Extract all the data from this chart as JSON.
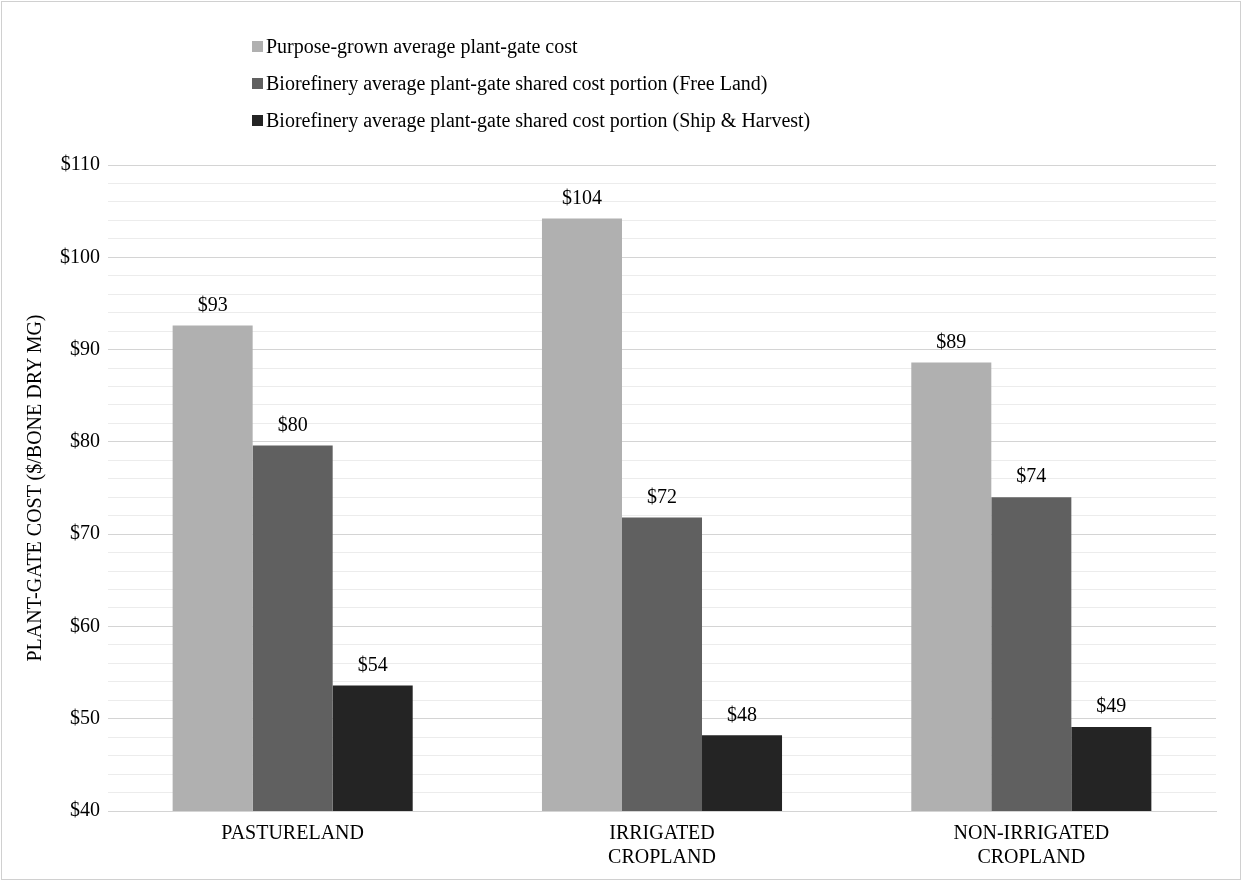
{
  "chart_data": {
    "type": "bar",
    "ylabel": "PLANT-GATE COST ($/BONE DRY MG)",
    "categories": [
      "PASTURELAND",
      "IRRIGATED CROPLAND",
      "NON-IRRIGATED CROPLAND"
    ],
    "series": [
      {
        "name": "Purpose-grown average plant-gate cost",
        "color": "#b0b0b0",
        "values": [
          92.6,
          104.2,
          88.6
        ],
        "value_labels": [
          "$93",
          "$104",
          "$89"
        ]
      },
      {
        "name": "Biorefinery average plant-gate shared cost portion (Free Land)",
        "color": "#606060",
        "values": [
          79.6,
          71.8,
          74.0
        ],
        "value_labels": [
          "$80",
          "$72",
          "$74"
        ]
      },
      {
        "name": "Biorefinery average plant-gate shared cost portion (Ship & Harvest)",
        "color": "#242424",
        "values": [
          53.6,
          48.2,
          49.1
        ],
        "value_labels": [
          "$54",
          "$48",
          "$49"
        ]
      }
    ],
    "ylim": [
      40,
      110
    ],
    "yticks": [
      {
        "value": 40,
        "label": "$40"
      },
      {
        "value": 42,
        "label": null
      },
      {
        "value": 44,
        "label": null
      },
      {
        "value": 46,
        "label": null
      },
      {
        "value": 48,
        "label": null
      },
      {
        "value": 50,
        "label": "$50"
      },
      {
        "value": 52,
        "label": null
      },
      {
        "value": 54,
        "label": null
      },
      {
        "value": 56,
        "label": null
      },
      {
        "value": 58,
        "label": null
      },
      {
        "value": 60,
        "label": "$60"
      },
      {
        "value": 62,
        "label": null
      },
      {
        "value": 64,
        "label": null
      },
      {
        "value": 66,
        "label": null
      },
      {
        "value": 68,
        "label": null
      },
      {
        "value": 70,
        "label": "$70"
      },
      {
        "value": 72,
        "label": null
      },
      {
        "value": 74,
        "label": null
      },
      {
        "value": 76,
        "label": null
      },
      {
        "value": 78,
        "label": null
      },
      {
        "value": 80,
        "label": "$80"
      },
      {
        "value": 82,
        "label": null
      },
      {
        "value": 84,
        "label": null
      },
      {
        "value": 86,
        "label": null
      },
      {
        "value": 88,
        "label": null
      },
      {
        "value": 90,
        "label": "$90"
      },
      {
        "value": 92,
        "label": null
      },
      {
        "value": 94,
        "label": null
      },
      {
        "value": 96,
        "label": null
      },
      {
        "value": 98,
        "label": null
      },
      {
        "value": 100,
        "label": "$100"
      },
      {
        "value": 102,
        "label": null
      },
      {
        "value": 104,
        "label": null
      },
      {
        "value": 106,
        "label": null
      },
      {
        "value": 108,
        "label": null
      },
      {
        "value": 110,
        "label": "$110"
      }
    ],
    "grid": "y",
    "legend": "top"
  }
}
